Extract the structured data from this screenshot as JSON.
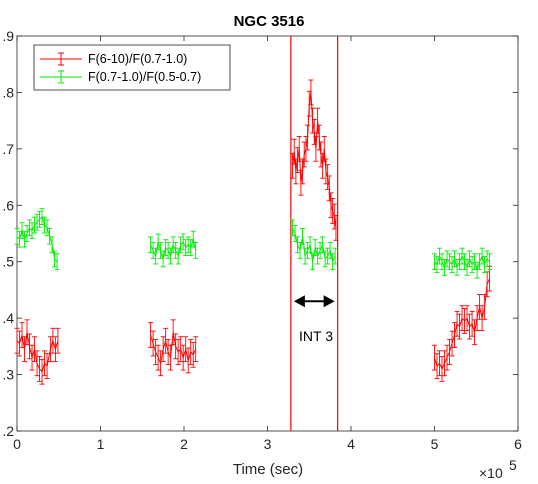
{
  "chart_data": {
    "type": "scatter",
    "title": "NGC 3516",
    "xlabel": "Time (sec)",
    "ylabel": "",
    "x_exponent_label": "×10",
    "x_exponent": "5",
    "xlim": [
      0,
      6
    ],
    "ylim": [
      0.2,
      0.9
    ],
    "xticks": [
      "0",
      "1",
      "2",
      "3",
      "4",
      "5",
      "6"
    ],
    "yticks": [
      ".2",
      ".3",
      ".4",
      ".5",
      ".6",
      ".7",
      ".8",
      ".9"
    ],
    "grid": false,
    "legend_position": "top-left",
    "vlines": [
      3.28,
      3.84
    ],
    "vline_color": "#ff0000",
    "annotation": {
      "text": "INT 3",
      "arrow_from": 3.28,
      "arrow_to": 3.84,
      "arrow_y": 0.43
    },
    "series": [
      {
        "name": "F(6-10)/F(0.7-1.0)",
        "color": "#ff0000",
        "error": 0.022,
        "points": [
          [
            0.0,
            0.36
          ],
          [
            0.03,
            0.355
          ],
          [
            0.06,
            0.37
          ],
          [
            0.09,
            0.345
          ],
          [
            0.12,
            0.375
          ],
          [
            0.15,
            0.35
          ],
          [
            0.18,
            0.33
          ],
          [
            0.21,
            0.345
          ],
          [
            0.24,
            0.32
          ],
          [
            0.27,
            0.31
          ],
          [
            0.3,
            0.305
          ],
          [
            0.33,
            0.32
          ],
          [
            0.36,
            0.315
          ],
          [
            0.4,
            0.345
          ],
          [
            0.43,
            0.36
          ],
          [
            0.46,
            0.345
          ],
          [
            0.49,
            0.36
          ],
          [
            1.6,
            0.37
          ],
          [
            1.63,
            0.355
          ],
          [
            1.66,
            0.34
          ],
          [
            1.69,
            0.33
          ],
          [
            1.72,
            0.32
          ],
          [
            1.75,
            0.345
          ],
          [
            1.78,
            0.36
          ],
          [
            1.81,
            0.34
          ],
          [
            1.84,
            0.33
          ],
          [
            1.87,
            0.375
          ],
          [
            1.9,
            0.35
          ],
          [
            1.93,
            0.34
          ],
          [
            1.96,
            0.345
          ],
          [
            1.99,
            0.33
          ],
          [
            2.02,
            0.345
          ],
          [
            2.05,
            0.325
          ],
          [
            2.08,
            0.34
          ],
          [
            2.11,
            0.335
          ],
          [
            2.14,
            0.345
          ],
          [
            3.3,
            0.67
          ],
          [
            3.32,
            0.695
          ],
          [
            3.34,
            0.66
          ],
          [
            3.36,
            0.68
          ],
          [
            3.38,
            0.7
          ],
          [
            3.4,
            0.64
          ],
          [
            3.42,
            0.66
          ],
          [
            3.44,
            0.69
          ],
          [
            3.46,
            0.7
          ],
          [
            3.48,
            0.72
          ],
          [
            3.5,
            0.78
          ],
          [
            3.52,
            0.8
          ],
          [
            3.54,
            0.75
          ],
          [
            3.56,
            0.73
          ],
          [
            3.58,
            0.7
          ],
          [
            3.6,
            0.75
          ],
          [
            3.62,
            0.72
          ],
          [
            3.64,
            0.69
          ],
          [
            3.66,
            0.67
          ],
          [
            3.68,
            0.7
          ],
          [
            3.7,
            0.66
          ],
          [
            3.72,
            0.65
          ],
          [
            3.74,
            0.63
          ],
          [
            3.76,
            0.6
          ],
          [
            3.78,
            0.59
          ],
          [
            3.8,
            0.58
          ],
          [
            3.82,
            0.56
          ],
          [
            5.0,
            0.33
          ],
          [
            5.03,
            0.315
          ],
          [
            5.06,
            0.32
          ],
          [
            5.09,
            0.31
          ],
          [
            5.12,
            0.32
          ],
          [
            5.15,
            0.33
          ],
          [
            5.18,
            0.34
          ],
          [
            5.21,
            0.355
          ],
          [
            5.24,
            0.37
          ],
          [
            5.27,
            0.39
          ],
          [
            5.3,
            0.385
          ],
          [
            5.33,
            0.4
          ],
          [
            5.36,
            0.395
          ],
          [
            5.39,
            0.4
          ],
          [
            5.42,
            0.385
          ],
          [
            5.45,
            0.39
          ],
          [
            5.48,
            0.375
          ],
          [
            5.51,
            0.4
          ],
          [
            5.54,
            0.42
          ],
          [
            5.57,
            0.4
          ],
          [
            5.6,
            0.42
          ],
          [
            5.63,
            0.46
          ],
          [
            5.66,
            0.47
          ]
        ]
      },
      {
        "name": "F(0.7-1.0)/F(0.5-0.7)",
        "color": "#00ee00",
        "error": 0.014,
        "points": [
          [
            0.0,
            0.545
          ],
          [
            0.03,
            0.54
          ],
          [
            0.06,
            0.555
          ],
          [
            0.09,
            0.54
          ],
          [
            0.12,
            0.55
          ],
          [
            0.15,
            0.56
          ],
          [
            0.18,
            0.555
          ],
          [
            0.21,
            0.565
          ],
          [
            0.24,
            0.57
          ],
          [
            0.27,
            0.575
          ],
          [
            0.3,
            0.58
          ],
          [
            0.33,
            0.565
          ],
          [
            0.36,
            0.56
          ],
          [
            0.39,
            0.545
          ],
          [
            0.42,
            0.53
          ],
          [
            0.45,
            0.505
          ],
          [
            0.48,
            0.5
          ],
          [
            1.6,
            0.53
          ],
          [
            1.63,
            0.52
          ],
          [
            1.66,
            0.51
          ],
          [
            1.69,
            0.535
          ],
          [
            1.72,
            0.52
          ],
          [
            1.75,
            0.505
          ],
          [
            1.78,
            0.525
          ],
          [
            1.81,
            0.52
          ],
          [
            1.84,
            0.51
          ],
          [
            1.87,
            0.53
          ],
          [
            1.9,
            0.52
          ],
          [
            1.93,
            0.51
          ],
          [
            1.96,
            0.53
          ],
          [
            1.99,
            0.535
          ],
          [
            2.02,
            0.525
          ],
          [
            2.05,
            0.53
          ],
          [
            2.08,
            0.525
          ],
          [
            2.11,
            0.54
          ],
          [
            2.14,
            0.52
          ],
          [
            3.3,
            0.56
          ],
          [
            3.33,
            0.55
          ],
          [
            3.36,
            0.53
          ],
          [
            3.39,
            0.52
          ],
          [
            3.42,
            0.545
          ],
          [
            3.45,
            0.51
          ],
          [
            3.48,
            0.52
          ],
          [
            3.51,
            0.53
          ],
          [
            3.54,
            0.5
          ],
          [
            3.57,
            0.525
          ],
          [
            3.6,
            0.51
          ],
          [
            3.63,
            0.52
          ],
          [
            3.66,
            0.53
          ],
          [
            3.69,
            0.505
          ],
          [
            3.72,
            0.51
          ],
          [
            3.75,
            0.52
          ],
          [
            3.78,
            0.5
          ],
          [
            3.81,
            0.51
          ],
          [
            5.0,
            0.5
          ],
          [
            5.03,
            0.495
          ],
          [
            5.06,
            0.51
          ],
          [
            5.09,
            0.5
          ],
          [
            5.12,
            0.49
          ],
          [
            5.15,
            0.505
          ],
          [
            5.18,
            0.5
          ],
          [
            5.21,
            0.495
          ],
          [
            5.24,
            0.505
          ],
          [
            5.27,
            0.49
          ],
          [
            5.3,
            0.5
          ],
          [
            5.33,
            0.51
          ],
          [
            5.36,
            0.5
          ],
          [
            5.39,
            0.49
          ],
          [
            5.42,
            0.505
          ],
          [
            5.45,
            0.495
          ],
          [
            5.48,
            0.5
          ],
          [
            5.51,
            0.485
          ],
          [
            5.54,
            0.5
          ],
          [
            5.57,
            0.51
          ],
          [
            5.6,
            0.495
          ],
          [
            5.63,
            0.505
          ],
          [
            5.66,
            0.5
          ]
        ]
      }
    ]
  }
}
